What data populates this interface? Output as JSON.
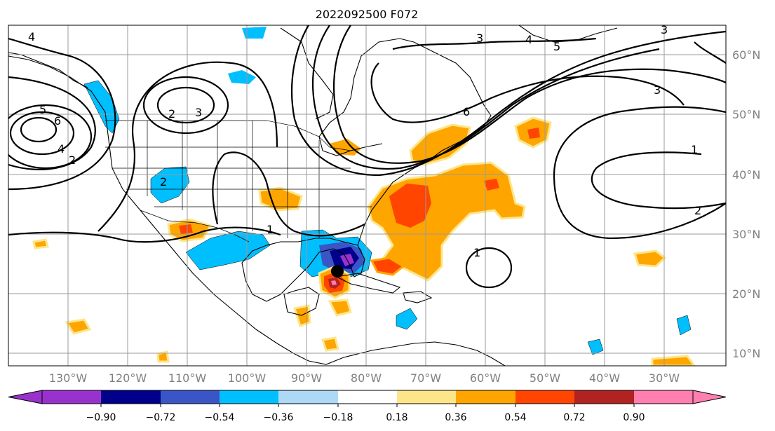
{
  "title": "2022092500 F072",
  "map": {
    "lon_labels": [
      "130°W",
      "120°W",
      "110°W",
      "100°W",
      "90°W",
      "80°W",
      "70°W",
      "60°W",
      "50°W",
      "40°W",
      "30°W"
    ],
    "lat_labels": [
      "60°N",
      "50°N",
      "40°N",
      "30°N",
      "20°N",
      "10°N"
    ],
    "contour_labels": [
      "4",
      "5",
      "6",
      "4",
      "2",
      "2",
      "3",
      "3",
      "4",
      "5",
      "3",
      "2",
      "1",
      "1",
      "1",
      "2",
      "3",
      "6"
    ],
    "marker": "storm-center"
  },
  "colorbar": {
    "colors": [
      "#9932cc",
      "#00008b",
      "#3a56c6",
      "#00bfff",
      "#add8f6",
      "#ffffff",
      "#fde68a",
      "#ffa500",
      "#ff4500",
      "#b22222",
      "#ff7fb0"
    ],
    "ticks": [
      "−0.90",
      "−0.72",
      "−0.54",
      "−0.36",
      "−0.18",
      "0.18",
      "0.36",
      "0.54",
      "0.72",
      "0.90"
    ]
  }
}
